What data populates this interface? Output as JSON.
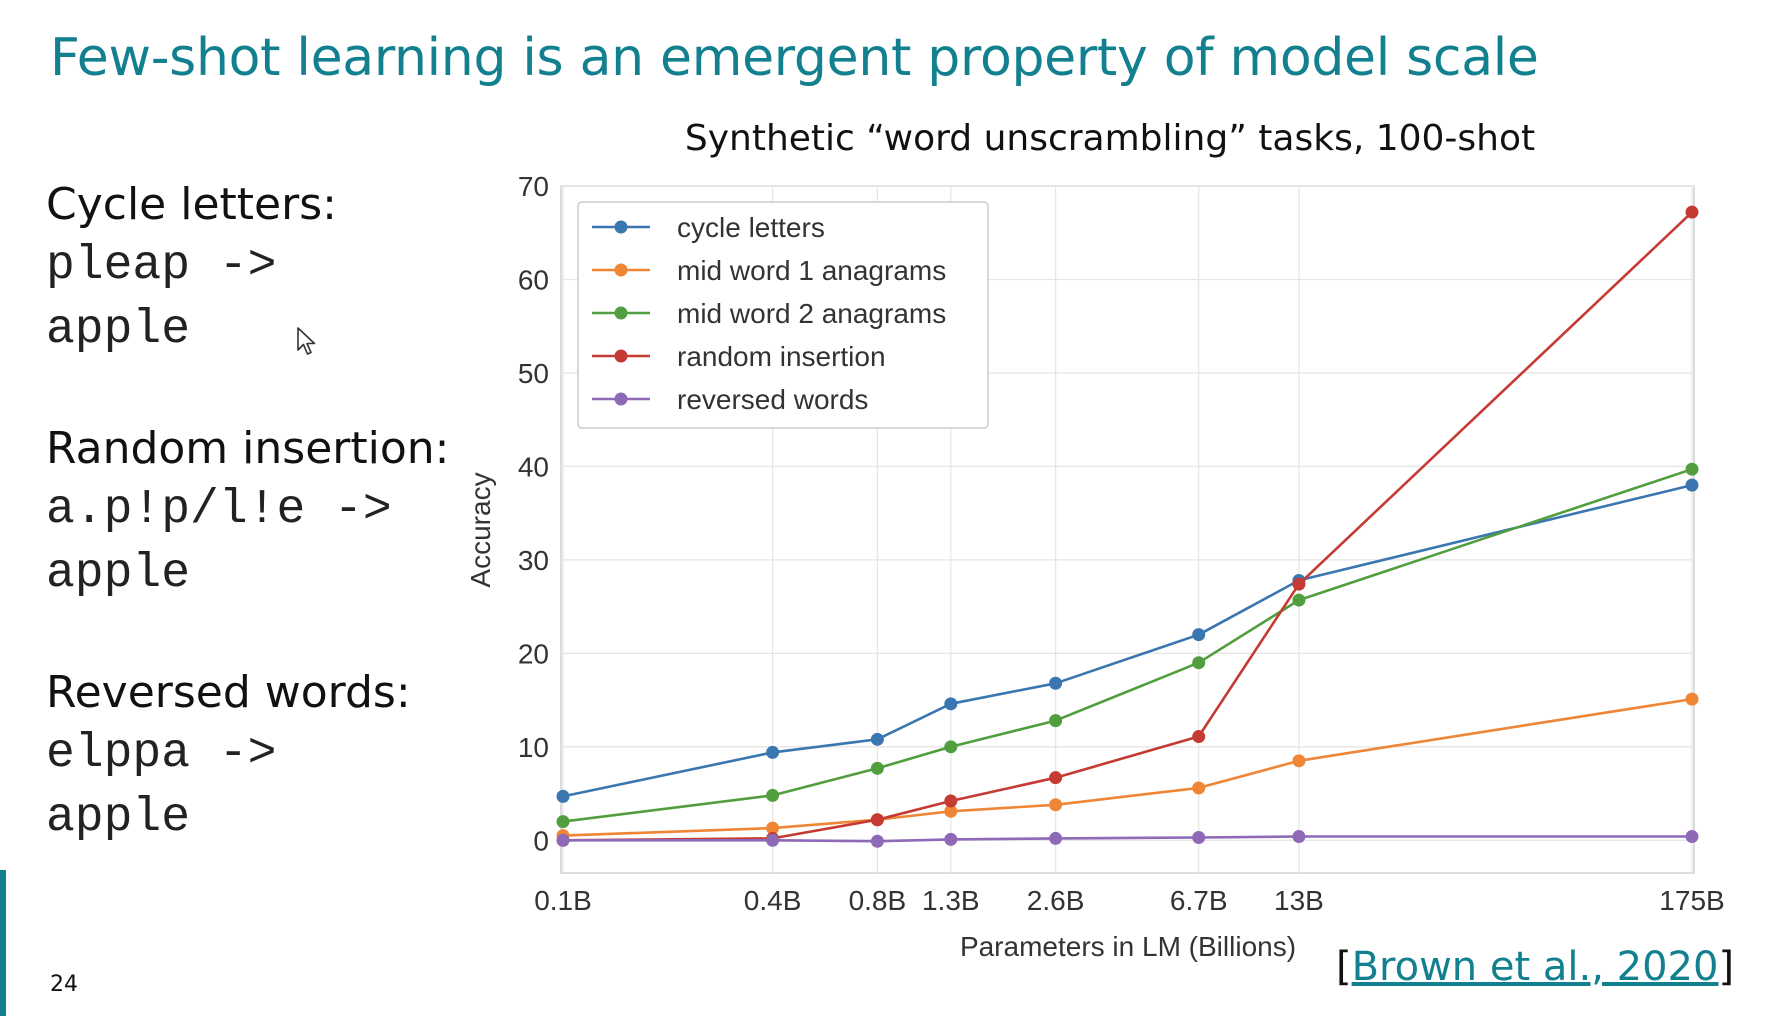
{
  "slide": {
    "title": "Few-shot learning is an emergent property of model scale",
    "page_number": "24",
    "citation": {
      "open": "[",
      "link_text": "Brown et al., 2020",
      "close": "]"
    }
  },
  "examples": [
    {
      "label": "Cycle letters:",
      "lines": [
        "pleap ->",
        "apple"
      ]
    },
    {
      "label": "Random insertion:",
      "lines": [
        "a.p!p/l!e ->",
        "apple"
      ]
    },
    {
      "label": "Reversed words:",
      "lines": [
        "elppa ->",
        "apple"
      ]
    }
  ],
  "colors": {
    "title": "#13808f",
    "accent": "#13808f"
  },
  "chart_data": {
    "type": "line",
    "title": "Synthetic “word unscrambling” tasks, 100-shot",
    "xlabel": "Parameters in LM (Billions)",
    "ylabel": "Accuracy",
    "x_scale": "log",
    "x": [
      0.1,
      0.4,
      0.8,
      1.3,
      2.6,
      6.7,
      13,
      175
    ],
    "x_tick_labels": [
      "0.1B",
      "0.4B",
      "0.8B",
      "1.3B",
      "2.6B",
      "6.7B",
      "13B",
      "175B"
    ],
    "y_ticks": [
      0,
      10,
      20,
      30,
      40,
      50,
      60,
      70
    ],
    "ylim": [
      -3.5,
      70
    ],
    "grid": true,
    "legend_position": "top-left",
    "series": [
      {
        "name": "cycle letters",
        "color": "#3a76af",
        "values": [
          4.7,
          9.4,
          10.8,
          14.6,
          16.8,
          22.0,
          27.8,
          38.0
        ]
      },
      {
        "name": "mid word 1 anagrams",
        "color": "#ef8636",
        "values": [
          0.5,
          1.3,
          2.2,
          3.1,
          3.8,
          5.6,
          8.5,
          15.1
        ]
      },
      {
        "name": "mid word 2 anagrams",
        "color": "#519e3e",
        "values": [
          2.0,
          4.8,
          7.7,
          10.0,
          12.8,
          19.0,
          25.7,
          39.7
        ]
      },
      {
        "name": "random insertion",
        "color": "#c53a32",
        "values": [
          0.0,
          0.2,
          2.2,
          4.2,
          6.7,
          11.1,
          27.4,
          67.2
        ]
      },
      {
        "name": "reversed words",
        "color": "#8d69b8",
        "values": [
          0.0,
          0.0,
          -0.1,
          0.1,
          0.2,
          0.3,
          0.4,
          0.4
        ]
      }
    ]
  }
}
